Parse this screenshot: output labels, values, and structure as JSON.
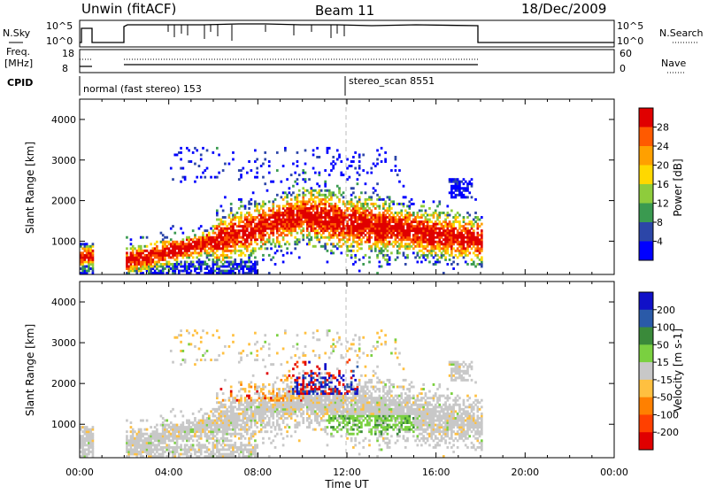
{
  "header": {
    "station": "Unwin (fitACF)",
    "beam": "Beam 11",
    "date": "18/Dec/2009"
  },
  "noise_panel": {
    "left_label": "N.Sky",
    "right_label": "N.Search",
    "left_ticks": [
      "10^5",
      "10^0"
    ],
    "right_ticks": [
      "10^5",
      "10^0"
    ]
  },
  "freq_panel": {
    "left_label_line1": "Freq.",
    "left_label_line2": "[MHz]",
    "right_label": "Nave",
    "left_ticks": [
      "18",
      "8"
    ],
    "right_ticks": [
      "60",
      "0"
    ]
  },
  "cpid": {
    "label": "CPID",
    "program1": "normal (fast stereo) 153",
    "program2": "stereo_scan 8551"
  },
  "chart_data": [
    {
      "type": "heatmap",
      "title": "",
      "ylabel": "Slant Range [km]",
      "xlabel": "",
      "colorbar_label": "Power [dB]",
      "colorbar_ticks": [
        "28",
        "24",
        "20",
        "16",
        "12",
        "8",
        "4"
      ],
      "colorbar_colors": [
        "#e00000",
        "#ff5a00",
        "#ffa000",
        "#ffd800",
        "#8ecc3c",
        "#3a9a50",
        "#2c46a8",
        "#0000ff"
      ],
      "ylim": [
        180,
        4500
      ],
      "xlim": [
        0,
        24
      ],
      "yticks": [
        "4000",
        "3000",
        "2000",
        "1000"
      ]
    },
    {
      "type": "heatmap",
      "title": "",
      "ylabel": "Slant Range [km]",
      "xlabel": "Time UT",
      "colorbar_label": "Velocity [m s-1]",
      "colorbar_ticks": [
        "200",
        "100",
        "50",
        "15",
        "-15",
        "-50",
        "-100",
        "-200"
      ],
      "colorbar_colors": [
        "#1010c8",
        "#2a5aa8",
        "#3a8a3a",
        "#7ad040",
        "#c8c8c8",
        "#ffc040",
        "#ff8000",
        "#ff4000",
        "#e00000"
      ],
      "ylim": [
        180,
        4500
      ],
      "xlim": [
        0,
        24
      ],
      "yticks": [
        "4000",
        "3000",
        "2000",
        "1000"
      ],
      "xticks": [
        "00:00",
        "04:00",
        "08:00",
        "12:00",
        "16:00",
        "20:00",
        "00:00"
      ]
    }
  ]
}
